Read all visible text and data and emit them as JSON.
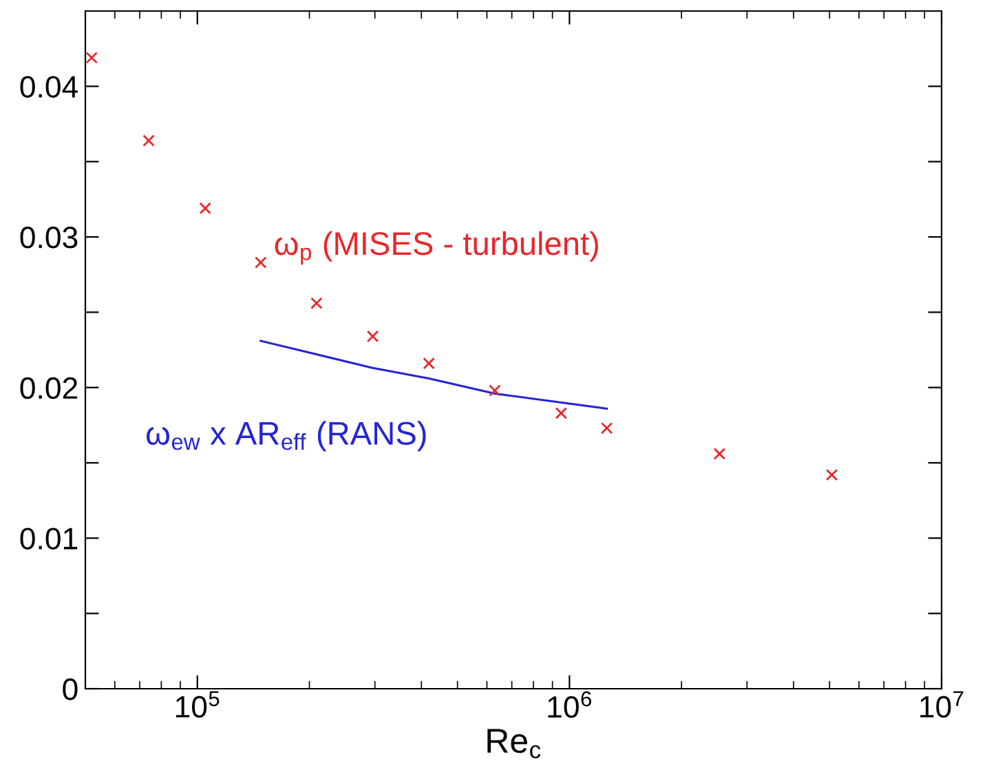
{
  "chart_data": {
    "type": "scatter",
    "xlabel": "Re$_{c}$",
    "log": "x",
    "grid": false,
    "xlim": [
      50000,
      10000000
    ],
    "xticks": [
      {
        "value": 100000,
        "label": "10$^{5}$"
      },
      {
        "value": 1000000,
        "label": "10$^{6}$"
      },
      {
        "value": 10000000,
        "label": "10$^{7}$"
      }
    ],
    "ylim": [
      0,
      0.045
    ],
    "yticks": [
      0,
      {
        "value": 0.005,
        "label": null
      },
      0.01,
      {
        "value": 0.015,
        "label": null
      },
      0.02,
      {
        "value": 0.025,
        "label": null
      },
      0.03,
      {
        "value": 0.035,
        "label": null
      },
      0.04
    ],
    "series": [
      {
        "name": "ω$_{p}$ (MISES - turbulent)",
        "marker": "cross",
        "color": "#e8262b",
        "x": [
          52000,
          74000,
          105000,
          148000,
          209000,
          296000,
          419000,
          630000,
          950000,
          1260000,
          2530000,
          5070000
        ],
        "values": [
          0.0419,
          0.0364,
          0.0319,
          0.0283,
          0.0256,
          0.0234,
          0.0216,
          0.0198,
          0.0183,
          0.0173,
          0.0156,
          0.0142
        ]
      },
      {
        "name": "ω$_{ew}$ x AR$_{eff}$ (RANS)",
        "type": "line",
        "marker": "none",
        "line_style": "solid",
        "color": "#2424d4",
        "x": [
          148000,
          296000,
          419000,
          630000,
          1260000
        ],
        "values": [
          0.0231,
          0.0213,
          0.0206,
          0.0196,
          0.0186
        ]
      }
    ]
  }
}
